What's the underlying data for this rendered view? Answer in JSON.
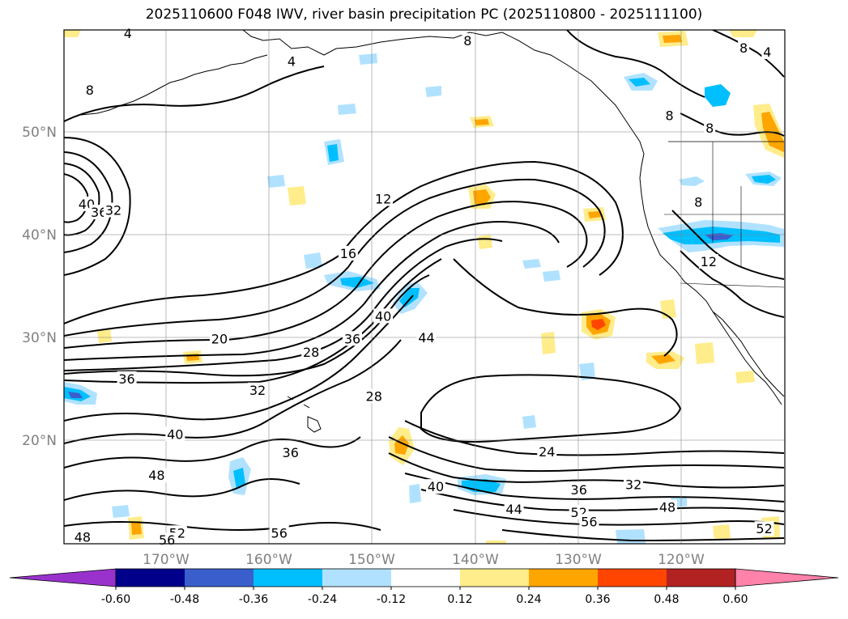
{
  "title": "2025110600 F048 IWV, river basin precipitation PC (2025110800 - 2025111100)",
  "lat_labels": [
    "50°N",
    "40°N",
    "30°N",
    "20°N"
  ],
  "lon_labels": [
    "170°W",
    "160°W",
    "150°W",
    "140°W",
    "130°W",
    "120°W"
  ],
  "colorbar": {
    "ticks": [
      "-0.60",
      "-0.48",
      "-0.36",
      "-0.24",
      "-0.12",
      "0.12",
      "0.24",
      "0.36",
      "0.48",
      "0.60"
    ],
    "colors": [
      "#9932cc",
      "#00008b",
      "#3a5fcd",
      "#00bfff",
      "#b0e2ff",
      "#ffffff",
      "#ffec8b",
      "#ffa500",
      "#ff4500",
      "#b22222",
      "#ff82ab"
    ]
  },
  "contour_labels": [
    {
      "text": "8",
      "lon": -177.5,
      "lat": 54.1
    },
    {
      "text": "40",
      "lon": -177.8,
      "lat": 43.0
    },
    {
      "text": "36",
      "lon": -176.6,
      "lat": 42.2
    },
    {
      "text": "32",
      "lon": -175.2,
      "lat": 42.4
    },
    {
      "text": "12",
      "lon": -149.0,
      "lat": 43.5
    },
    {
      "text": "16",
      "lon": -152.4,
      "lat": 38.2
    },
    {
      "text": "20",
      "lon": -164.9,
      "lat": 29.9
    },
    {
      "text": "28",
      "lon": -156.0,
      "lat": 28.6
    },
    {
      "text": "36",
      "lon": -152.0,
      "lat": 29.9
    },
    {
      "text": "40",
      "lon": -149.0,
      "lat": 32.1
    },
    {
      "text": "44",
      "lon": -144.8,
      "lat": 30.0
    },
    {
      "text": "36",
      "lon": -173.9,
      "lat": 26.0
    },
    {
      "text": "32",
      "lon": -161.2,
      "lat": 24.9
    },
    {
      "text": "28",
      "lon": -149.9,
      "lat": 24.3
    },
    {
      "text": "40",
      "lon": -169.2,
      "lat": 20.6
    },
    {
      "text": "36",
      "lon": -158.0,
      "lat": 18.8
    },
    {
      "text": "48",
      "lon": -171.0,
      "lat": 16.6
    },
    {
      "text": "24",
      "lon": -133.1,
      "lat": 18.9
    },
    {
      "text": "40",
      "lon": -143.9,
      "lat": 15.5
    },
    {
      "text": "36",
      "lon": -130.0,
      "lat": 15.2
    },
    {
      "text": "32",
      "lon": -124.7,
      "lat": 15.7
    },
    {
      "text": "44",
      "lon": -136.3,
      "lat": 13.3
    },
    {
      "text": "52",
      "lon": -130.0,
      "lat": 13.0
    },
    {
      "text": "56",
      "lon": -129.0,
      "lat": 12.1
    },
    {
      "text": "48",
      "lon": -121.4,
      "lat": 13.5
    },
    {
      "text": "48",
      "lon": -178.2,
      "lat": 10.6
    },
    {
      "text": "52",
      "lon": -169.0,
      "lat": 11.0
    },
    {
      "text": "56",
      "lon": -170.0,
      "lat": 10.3
    },
    {
      "text": "56",
      "lon": -159.1,
      "lat": 11.0
    },
    {
      "text": "52",
      "lon": -112.0,
      "lat": 11.4
    },
    {
      "text": "8",
      "lon": -140.8,
      "lat": 58.9
    },
    {
      "text": "4",
      "lon": -157.9,
      "lat": 56.9
    },
    {
      "text": "4",
      "lon": -173.8,
      "lat": 59.6
    },
    {
      "text": "8",
      "lon": -114.0,
      "lat": 58.2
    },
    {
      "text": "4",
      "lon": -111.7,
      "lat": 57.8
    },
    {
      "text": "8",
      "lon": -121.2,
      "lat": 51.6
    },
    {
      "text": "8",
      "lon": -117.3,
      "lat": 50.4
    },
    {
      "text": "8",
      "lon": -118.4,
      "lat": 43.2
    },
    {
      "text": "12",
      "lon": -117.4,
      "lat": 37.4
    }
  ]
}
